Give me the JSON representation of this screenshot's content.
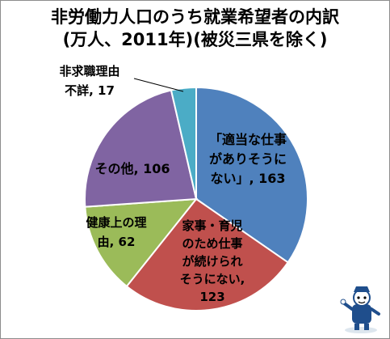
{
  "chart_data": {
    "type": "pie",
    "title": "非労働力人口のうち就業希望者の内訳",
    "subtitle": "(万人、2011年)(被災三県を除く)",
    "slices": [
      {
        "label": "「適当な仕事がありそうにない」",
        "value": 163,
        "color": "#4f81bd",
        "label_lines": [
          "「適当な仕事",
          "がありそうに",
          "ない」, 163"
        ],
        "text_color": "#000000"
      },
      {
        "label": "家事・育児のため仕事が続けられそうにない",
        "value": 123,
        "color": "#c0504d",
        "label_lines": [
          "家事・育児",
          "のため仕事",
          "が続けられ",
          "そうにない,",
          "123"
        ],
        "text_color": "#000000"
      },
      {
        "label": "健康上の理由",
        "value": 62,
        "color": "#9bbb59",
        "label_lines": [
          "健康上の理",
          "由, 62"
        ],
        "text_color": "#000000"
      },
      {
        "label": "その他",
        "value": 106,
        "color": "#8064a2",
        "label_lines": [
          "その他, 106"
        ],
        "text_color": "#000000"
      },
      {
        "label": "非求職理由不詳",
        "value": 17,
        "color": "#4bacc6",
        "label_lines": [
          "非求職理由",
          "不詳, 17"
        ],
        "text_color": "#000000"
      }
    ],
    "start_angle_deg": 0,
    "direction": "clockwise",
    "legend": "none"
  }
}
